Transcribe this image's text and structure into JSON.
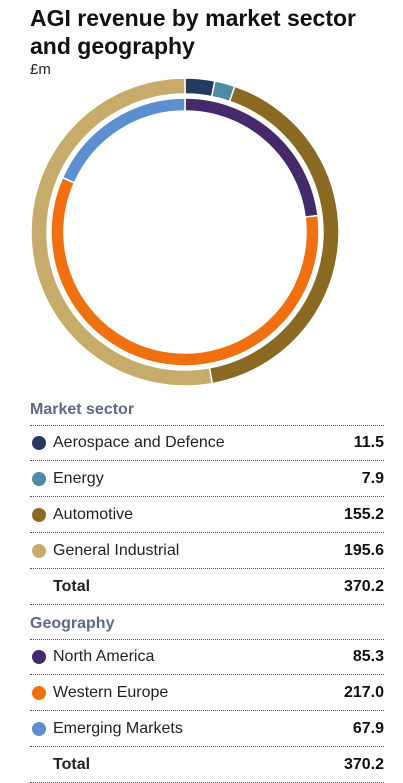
{
  "title": "AGI revenue by market sector and geography",
  "unit": "£m",
  "chart_data": [
    {
      "type": "pie",
      "ring": "outer",
      "heading": "Market sector",
      "categories": [
        "Aerospace and Defence",
        "Energy",
        "Automotive",
        "General Industrial"
      ],
      "values": [
        11.5,
        7.9,
        155.2,
        195.6
      ],
      "colors": [
        "#243a5e",
        "#4d8aa6",
        "#8a6a22",
        "#c7ab6b"
      ],
      "total_label": "Total",
      "total_value": "370.2",
      "value_labels": [
        "11.5",
        "7.9",
        "155.2",
        "195.6"
      ]
    },
    {
      "type": "pie",
      "ring": "inner",
      "heading": "Geography",
      "categories": [
        "North America",
        "Western Europe",
        "Emerging Markets"
      ],
      "values": [
        85.3,
        217.0,
        67.9
      ],
      "colors": [
        "#452a6b",
        "#f07010",
        "#5b8fd0"
      ],
      "total_label": "Total",
      "total_value": "370.2",
      "value_labels": [
        "85.3",
        "217.0",
        "67.9"
      ]
    }
  ]
}
